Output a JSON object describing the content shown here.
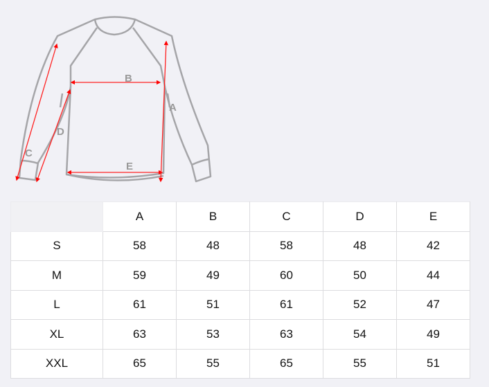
{
  "diagram": {
    "labels": [
      "A",
      "B",
      "C",
      "D",
      "E"
    ],
    "outline_color": "#a0a0a0",
    "arrow_color": "#ff0000"
  },
  "table": {
    "columns": [
      "A",
      "B",
      "C",
      "D",
      "E"
    ],
    "rows": [
      {
        "size": "S",
        "values": [
          "58",
          "48",
          "58",
          "48",
          "42"
        ]
      },
      {
        "size": "M",
        "values": [
          "59",
          "49",
          "60",
          "50",
          "44"
        ]
      },
      {
        "size": "L",
        "values": [
          "61",
          "51",
          "61",
          "52",
          "47"
        ]
      },
      {
        "size": "XL",
        "values": [
          "63",
          "53",
          "63",
          "54",
          "49"
        ]
      },
      {
        "size": "XXL",
        "values": [
          "65",
          "55",
          "65",
          "55",
          "51"
        ]
      }
    ]
  }
}
